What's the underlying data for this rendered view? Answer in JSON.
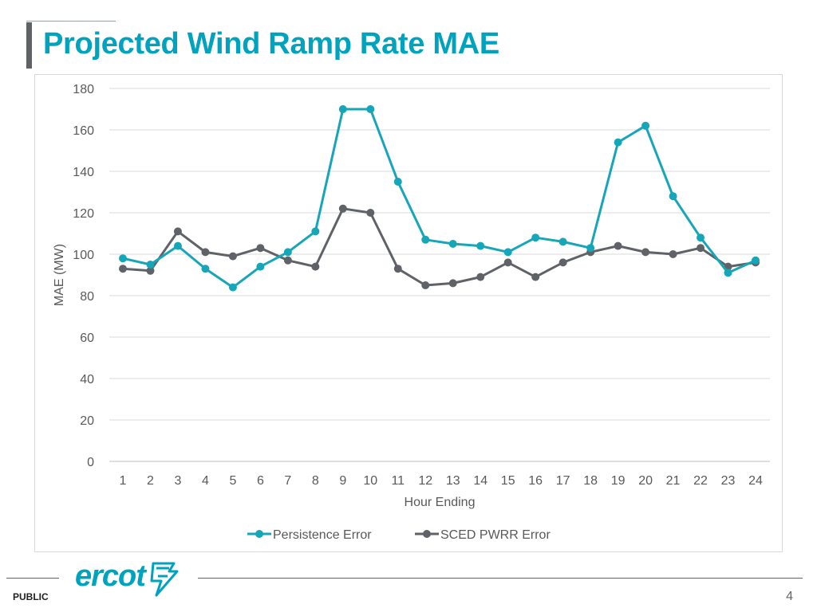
{
  "slide": {
    "title": "Projected Wind Ramp Rate MAE",
    "footer_label": "PUBLIC",
    "page_number": "4",
    "logo_text": "ercot"
  },
  "chart_data": {
    "type": "line",
    "title": "",
    "xlabel": "Hour Ending",
    "ylabel": "MAE (MW)",
    "ylim": [
      0,
      180
    ],
    "yticks": [
      0,
      20,
      40,
      60,
      80,
      100,
      120,
      140,
      160,
      180
    ],
    "categories": [
      "1",
      "2",
      "3",
      "4",
      "5",
      "6",
      "7",
      "8",
      "9",
      "10",
      "11",
      "12",
      "13",
      "14",
      "15",
      "16",
      "17",
      "18",
      "19",
      "20",
      "21",
      "22",
      "23",
      "24"
    ],
    "grid": true,
    "legend_position": "bottom",
    "series": [
      {
        "name": "Persistence Error",
        "color": "#17a5b8",
        "values": [
          98,
          95,
          104,
          93,
          84,
          94,
          101,
          111,
          170,
          170,
          135,
          107,
          105,
          104,
          101,
          108,
          106,
          103,
          154,
          162,
          128,
          108,
          91,
          97
        ]
      },
      {
        "name": "SCED PWRR Error",
        "color": "#5f6368",
        "values": [
          93,
          92,
          111,
          101,
          99,
          103,
          97,
          94,
          122,
          120,
          93,
          85,
          86,
          89,
          96,
          89,
          96,
          101,
          104,
          101,
          100,
          103,
          94,
          96
        ]
      }
    ]
  }
}
